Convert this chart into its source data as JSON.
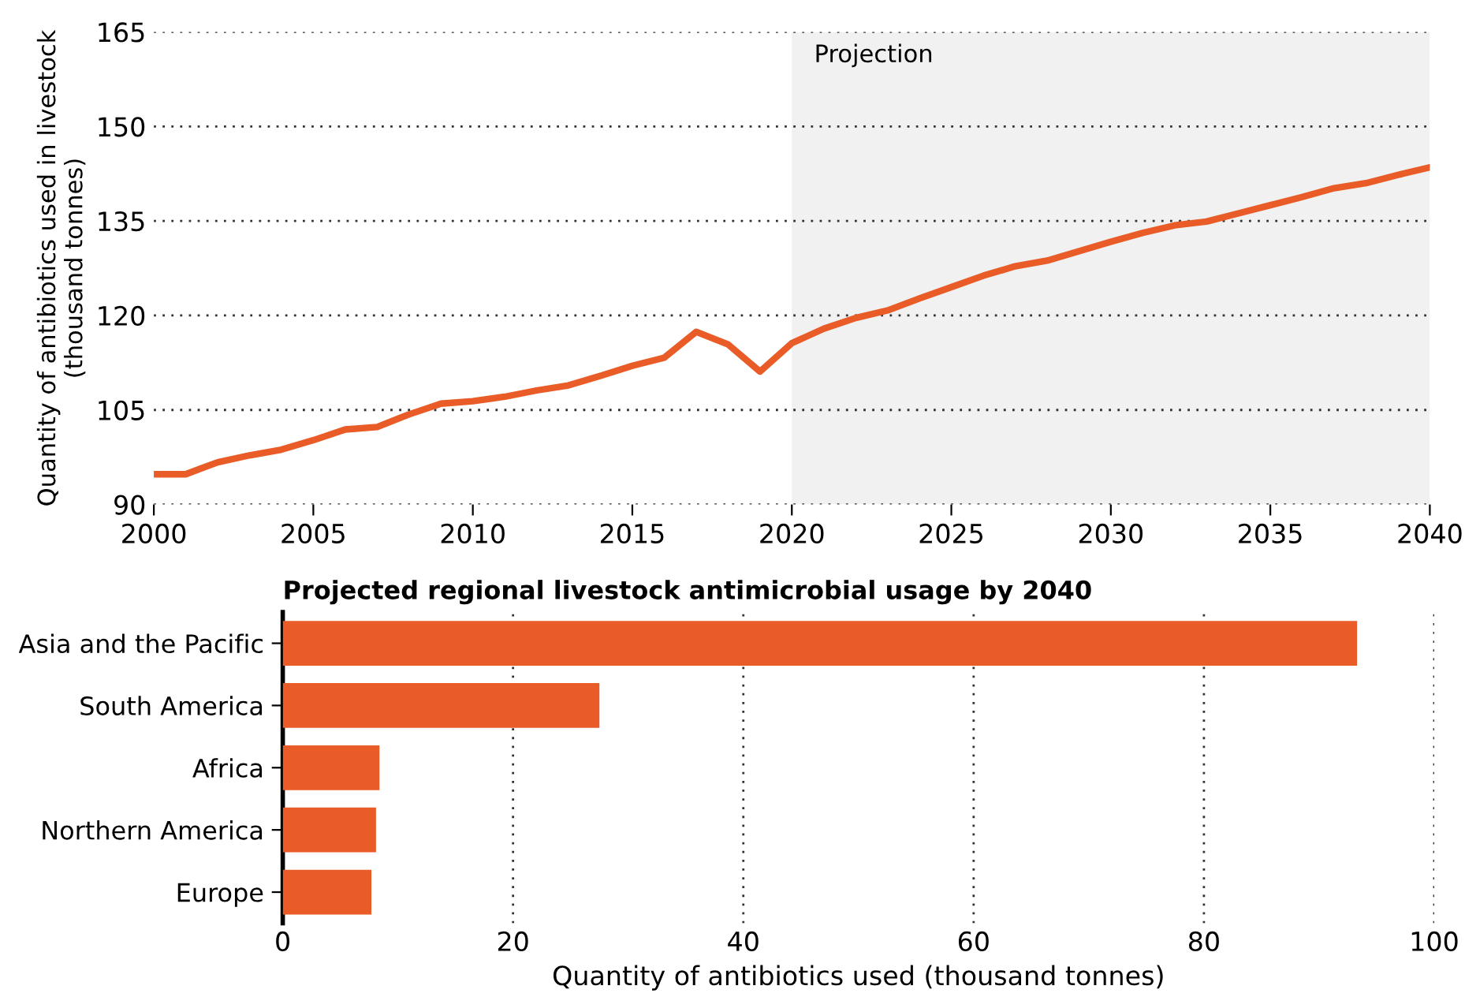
{
  "chart_data": [
    {
      "type": "line",
      "ylabel": "Quantity of antibiotics used in livestock\n(thousand tonnes)",
      "x": [
        2000,
        2001,
        2002,
        2003,
        2004,
        2005,
        2006,
        2007,
        2008,
        2009,
        2010,
        2011,
        2012,
        2013,
        2014,
        2015,
        2016,
        2017,
        2018,
        2019,
        2020,
        2021,
        2022,
        2023,
        2024,
        2025,
        2026,
        2027,
        2028,
        2029,
        2030,
        2031,
        2032,
        2033,
        2034,
        2035,
        2036,
        2037,
        2038,
        2039,
        2040
      ],
      "series": [
        {
          "color": "#e95b27",
          "values": [
            94.8,
            94.8,
            96.7,
            97.8,
            98.7,
            100.2,
            101.9,
            102.3,
            104.3,
            106,
            106.4,
            107.1,
            108.1,
            108.9,
            110.4,
            112,
            113.3,
            117.4,
            115.4,
            111.1,
            115.6,
            117.9,
            119.6,
            120.8,
            122.7,
            124.5,
            126.3,
            127.8,
            128.7,
            130.2,
            131.7,
            133.1,
            134.3,
            134.9,
            136.2,
            137.5,
            138.8,
            140.2,
            141,
            142.3,
            143.5
          ]
        }
      ],
      "xlim": [
        2000,
        2040
      ],
      "xticks": [
        2000,
        2005,
        2010,
        2015,
        2020,
        2025,
        2030,
        2035,
        2040
      ],
      "ylim": [
        90,
        165
      ],
      "yticks": [
        90,
        105,
        120,
        135,
        150,
        165
      ],
      "grid": "y",
      "marker": "none",
      "line_style": "solid",
      "bands": [
        {
          "axis": "x",
          "from": 2020,
          "to": 2040,
          "label": "Projection",
          "color": "#f1f1f1"
        }
      ]
    },
    {
      "type": "bar",
      "orientation": "horizontal",
      "title": "Projected regional livestock antimicrobial usage by 2040",
      "xlabel": "Quantity of antibiotics used (thousand tonnes)",
      "categories": [
        "Asia and the Pacific",
        "South America",
        "Africa",
        "Northern America",
        "Europe"
      ],
      "series": [
        {
          "color": "#e95b27",
          "values": [
            93.3,
            27.5,
            8.4,
            8.1,
            7.7
          ]
        }
      ],
      "xlim": [
        0,
        100
      ],
      "xticks": [
        0,
        20,
        40,
        60,
        80,
        100
      ],
      "grid": "x"
    }
  ]
}
